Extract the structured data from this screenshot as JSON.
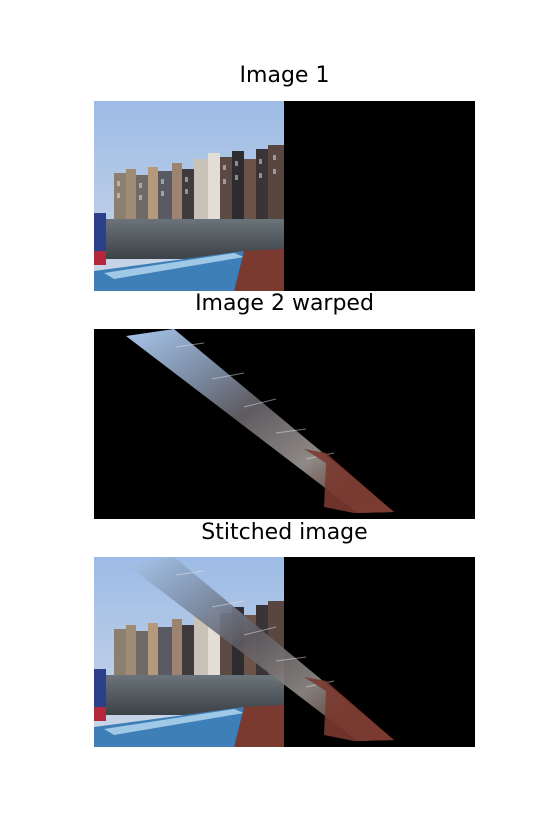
{
  "figure": {
    "panels": [
      {
        "title": "Image 1"
      },
      {
        "title": "Image 2 warped"
      },
      {
        "title": "Stitched image"
      }
    ]
  },
  "colors": {
    "background": "#ffffff",
    "canvas": "#000000",
    "sky": "#a9c4e6",
    "water": "#4f5a60",
    "brick": "#7a3a30"
  }
}
